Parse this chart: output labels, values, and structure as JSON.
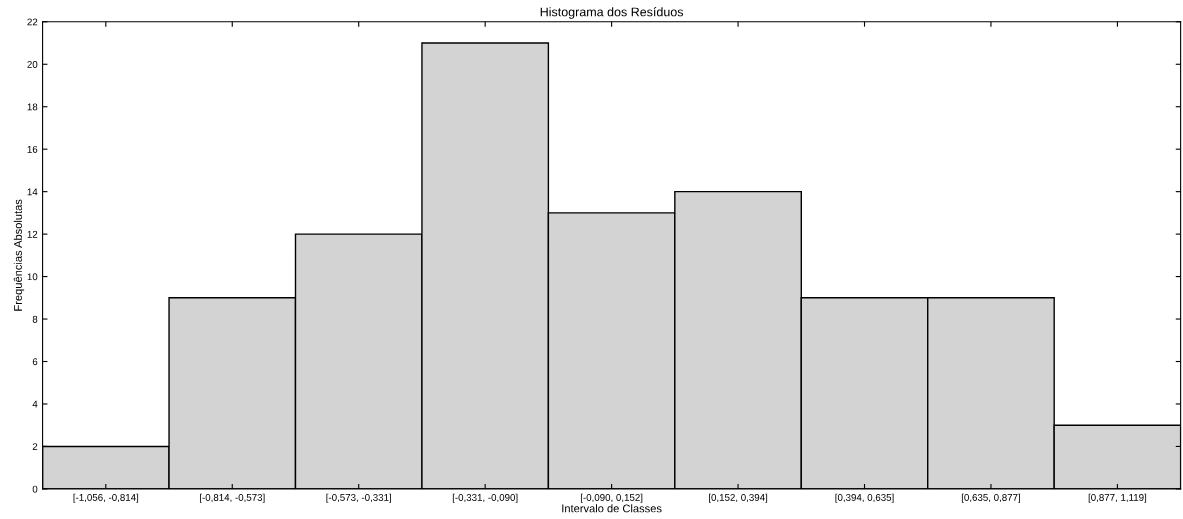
{
  "chart_data": {
    "type": "bar",
    "title": "Histograma dos Resíduos",
    "xlabel": "Intervalo de Classes",
    "ylabel": "Frequências Absolutas",
    "categories": [
      "[-1,056, -0,814]",
      "[-0,814, -0,573]",
      "[-0,573, -0,331]",
      "[-0,331, -0,090]",
      "[-0,090, 0,152]",
      "[0,152, 0,394]",
      "[0,394, 0,635]",
      "[0,635, 0,877]",
      "[0,877, 1,119]"
    ],
    "values": [
      2,
      9,
      12,
      21,
      13,
      14,
      9,
      9,
      3
    ],
    "color": "#d3d3d3",
    "ylim": [
      0,
      22
    ],
    "yticks": [
      0,
      2,
      4,
      6,
      8,
      10,
      12,
      14,
      16,
      18,
      20,
      22
    ],
    "grid": false
  }
}
